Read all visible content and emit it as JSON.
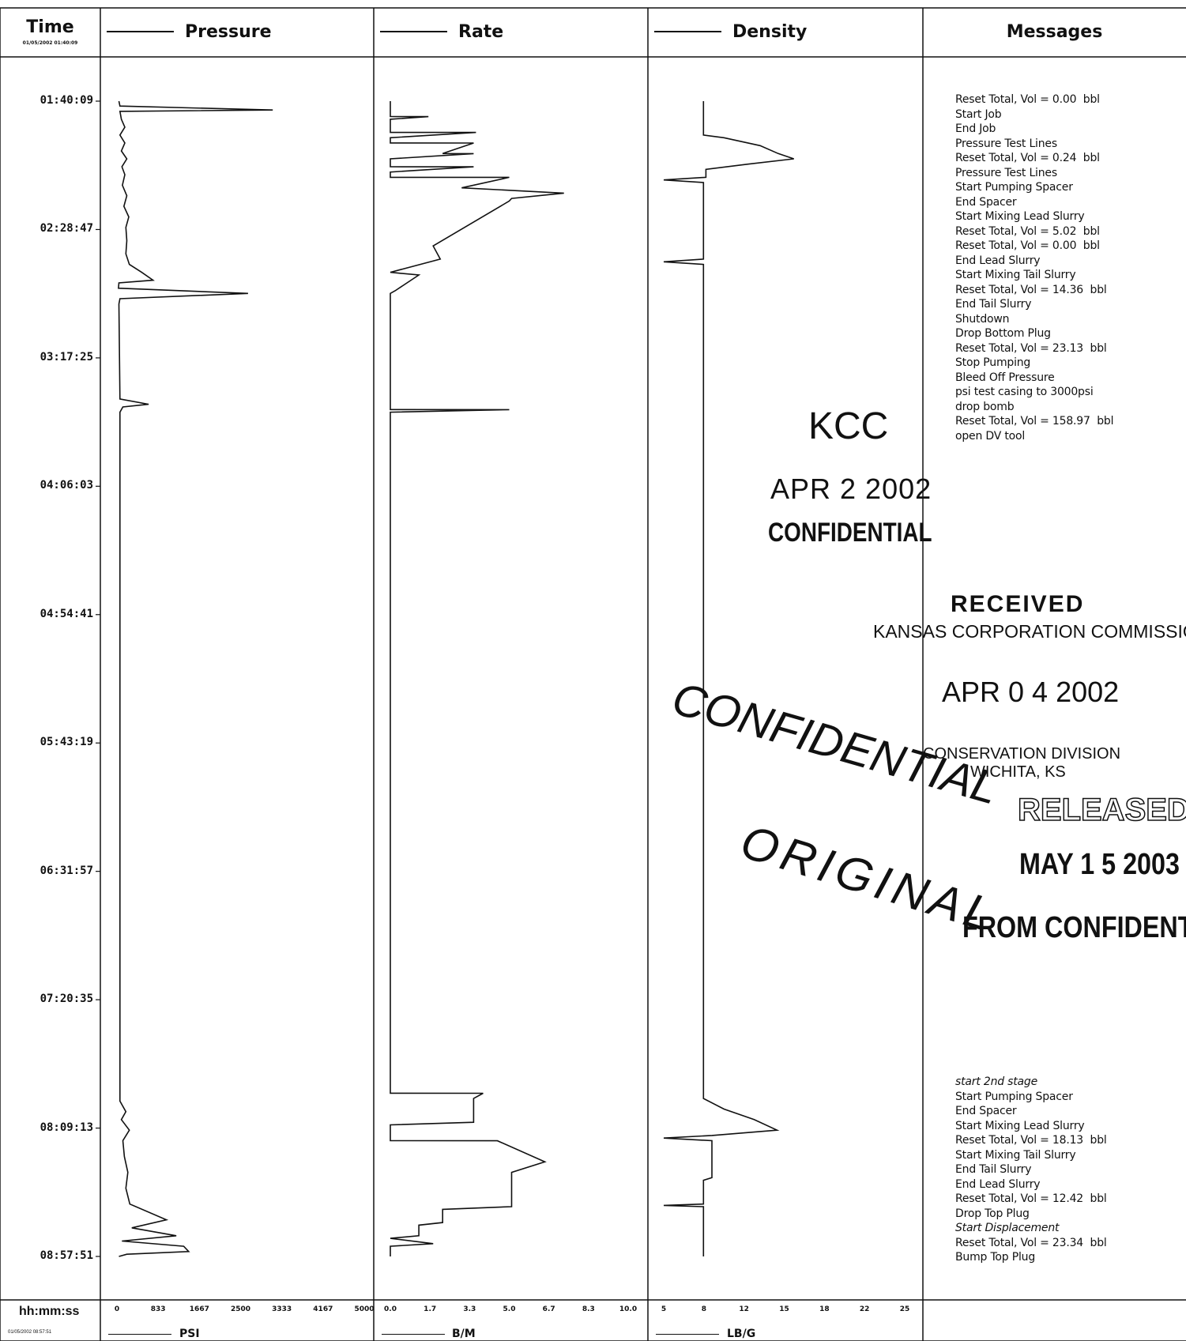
{
  "headers": {
    "time": "Time",
    "time_date": "01/05/2002 01:40:09",
    "pressure": "Pressure",
    "rate": "Rate",
    "density": "Density",
    "messages": "Messages"
  },
  "time_ticks": [
    "01:40:09",
    "02:28:47",
    "03:17:25",
    "04:06:03",
    "04:54:41",
    "05:43:19",
    "06:31:57",
    "07:20:35",
    "08:09:13",
    "08:57:51"
  ],
  "footer": {
    "time_label": "hh:mm:ss",
    "time_date": "01/05/2002 08:57:51",
    "pressure_unit": "PSI",
    "rate_unit": "B/M",
    "density_unit": "LB/G",
    "pressure_ticks": [
      "0",
      "833",
      "1667",
      "2500",
      "3333",
      "4167",
      "5000"
    ],
    "rate_ticks": [
      "0.0",
      "1.7",
      "3.3",
      "5.0",
      "6.7",
      "8.3",
      "10.0"
    ],
    "density_ticks": [
      "5",
      "8",
      "12",
      "15",
      "18",
      "22",
      "25"
    ]
  },
  "messages_group1": [
    "Reset Total, Vol = 0.00  bbl",
    "Start Job",
    "End Job",
    "Pressure Test Lines",
    "Reset Total, Vol = 0.24  bbl",
    "Pressure Test Lines",
    "Start Pumping Spacer",
    "End Spacer",
    "Start Mixing Lead Slurry",
    "Reset Total, Vol = 5.02  bbl",
    "Reset Total, Vol = 0.00  bbl",
    "End Lead Slurry",
    "Start Mixing Tail Slurry",
    "Reset Total, Vol = 14.36  bbl",
    "End Tail Slurry",
    "Shutdown",
    "Drop Bottom Plug",
    "Reset Total, Vol = 23.13  bbl",
    "Stop Pumping",
    "Bleed Off Pressure",
    "psi test casing to 3000psi",
    "drop bomb",
    "Reset Total, Vol = 158.97  bbl",
    "open DV tool"
  ],
  "messages_group2": [
    "start 2nd stage",
    "Start Pumping Spacer",
    "End Spacer",
    "Start Mixing Lead Slurry",
    "Reset Total, Vol = 18.13  bbl",
    "Start Mixing Tail Slurry",
    "End Tail Slurry",
    "End Lead Slurry",
    "Reset Total, Vol = 12.42  bbl",
    "Drop Top Plug",
    "Start Displacement",
    "Reset Total, Vol = 23.34  bbl",
    "Bump Top Plug"
  ],
  "stamps": {
    "kcc": "KCC",
    "kcc_date": "APR    2 2002",
    "kcc_confidential": "CONFIDENTIAL",
    "received": "RECEIVED",
    "kansas": "KANSAS CORPORATION COMMISSION",
    "received_date": "APR 0 4 2002",
    "conservation": "CONSERVATION DIVISION",
    "wichita": "WICHITA, KS",
    "confidential_big": "CONFIDENTIAL",
    "original": "ORIGINAL",
    "released": "RELEASED",
    "released_date": "MAY 1 5 2003",
    "from_confidential": "FROM CONFIDENTIAL"
  },
  "chart_data": {
    "type": "line",
    "x_axis": "time",
    "time_range": [
      "01:40:09",
      "08:57:51"
    ],
    "series": [
      {
        "name": "Pressure",
        "unit": "PSI",
        "xlim": [
          0,
          5000
        ],
        "points": [
          [
            "01:40:09",
            40
          ],
          [
            "01:42:00",
            60
          ],
          [
            "01:43:30",
            3150
          ],
          [
            "01:44:00",
            60
          ],
          [
            "01:47:00",
            90
          ],
          [
            "01:50:00",
            160
          ],
          [
            "01:53:00",
            60
          ],
          [
            "01:56:00",
            160
          ],
          [
            "01:59:00",
            90
          ],
          [
            "02:02:00",
            200
          ],
          [
            "02:05:00",
            100
          ],
          [
            "02:08:00",
            160
          ],
          [
            "02:12:00",
            110
          ],
          [
            "02:16:00",
            200
          ],
          [
            "02:20:00",
            140
          ],
          [
            "02:24:00",
            240
          ],
          [
            "02:28:00",
            180
          ],
          [
            "02:33:00",
            200
          ],
          [
            "02:38:00",
            180
          ],
          [
            "02:42:00",
            250
          ],
          [
            "02:45:00",
            500
          ],
          [
            "02:48:00",
            730
          ],
          [
            "02:49:00",
            40
          ],
          [
            "02:51:00",
            30
          ],
          [
            "02:53:00",
            2650
          ],
          [
            "02:55:00",
            60
          ],
          [
            "02:57:00",
            40
          ],
          [
            "03:33:00",
            60
          ],
          [
            "03:35:00",
            640
          ],
          [
            "03:36:00",
            120
          ],
          [
            "03:38:00",
            60
          ],
          [
            "03:38:30",
            60
          ],
          [
            "07:59:00",
            60
          ],
          [
            "08:03:00",
            180
          ],
          [
            "08:06:00",
            90
          ],
          [
            "08:10:00",
            250
          ],
          [
            "08:14:00",
            120
          ],
          [
            "08:20:00",
            150
          ],
          [
            "08:26:00",
            220
          ],
          [
            "08:32:00",
            180
          ],
          [
            "08:38:00",
            260
          ],
          [
            "08:44:00",
            1000
          ],
          [
            "08:47:00",
            300
          ],
          [
            "08:50:00",
            1200
          ],
          [
            "08:52:00",
            100
          ],
          [
            "08:54:00",
            1350
          ],
          [
            "08:56:00",
            1450
          ],
          [
            "08:57:00",
            200
          ],
          [
            "08:57:51",
            40
          ]
        ]
      },
      {
        "name": "Rate",
        "unit": "B/M",
        "xlim": [
          0,
          10
        ],
        "points": [
          [
            "01:40:09",
            0
          ],
          [
            "01:46:00",
            0
          ],
          [
            "01:46:01",
            1.6
          ],
          [
            "01:47:00",
            0
          ],
          [
            "01:52:00",
            0
          ],
          [
            "01:52:01",
            3.6
          ],
          [
            "01:54:00",
            0
          ],
          [
            "01:56:00",
            0
          ],
          [
            "01:56:01",
            3.5
          ],
          [
            "02:00:00",
            2.2
          ],
          [
            "02:00:01",
            3.5
          ],
          [
            "02:02:00",
            0
          ],
          [
            "02:05:00",
            0
          ],
          [
            "02:05:01",
            3.5
          ],
          [
            "02:07:00",
            0
          ],
          [
            "02:09:00",
            0
          ],
          [
            "02:09:01",
            5.0
          ],
          [
            "02:13:00",
            3.0
          ],
          [
            "02:15:00",
            7.3
          ],
          [
            "02:17:00",
            5.1
          ],
          [
            "02:18:00",
            5.0
          ],
          [
            "02:35:00",
            1.8
          ],
          [
            "02:40:00",
            2.1
          ],
          [
            "02:45:00",
            0
          ],
          [
            "02:46:00",
            1.2
          ],
          [
            "02:52:00",
            0.2
          ],
          [
            "02:53:00",
            0
          ],
          [
            "03:37:00",
            0
          ],
          [
            "03:37:01",
            5.0
          ],
          [
            "03:38:00",
            0
          ],
          [
            "07:56:00",
            0
          ],
          [
            "07:56:01",
            3.9
          ],
          [
            "07:58:00",
            3.5
          ],
          [
            "08:07:00",
            3.5
          ],
          [
            "08:08:00",
            0
          ],
          [
            "08:14:00",
            0
          ],
          [
            "08:14:01",
            4.5
          ],
          [
            "08:22:00",
            6.5
          ],
          [
            "08:26:00",
            5.1
          ],
          [
            "08:39:00",
            5.1
          ],
          [
            "08:40:00",
            2.2
          ],
          [
            "08:45:00",
            2.2
          ],
          [
            "08:46:00",
            1.2
          ],
          [
            "08:50:00",
            1.2
          ],
          [
            "08:51:00",
            0
          ],
          [
            "08:53:00",
            1.8
          ],
          [
            "08:54:00",
            0
          ],
          [
            "08:57:51",
            0
          ]
        ]
      },
      {
        "name": "Density",
        "unit": "LB/G",
        "xlim": [
          5,
          25
        ],
        "points": [
          [
            "01:40:09",
            8.3
          ],
          [
            "01:53:00",
            8.3
          ],
          [
            "01:54:00",
            10
          ],
          [
            "01:57:00",
            13
          ],
          [
            "02:00:00",
            14.5
          ],
          [
            "02:02:00",
            15.8
          ],
          [
            "02:04:00",
            12
          ],
          [
            "02:06:00",
            8.5
          ],
          [
            "02:09:00",
            8.5
          ],
          [
            "02:10:00",
            5
          ],
          [
            "02:11:00",
            8.3
          ],
          [
            "02:30:00",
            8.3
          ],
          [
            "02:40:00",
            8.3
          ],
          [
            "02:41:00",
            5
          ],
          [
            "02:42:00",
            8.3
          ],
          [
            "07:58:00",
            8.3
          ],
          [
            "08:02:00",
            10
          ],
          [
            "08:06:00",
            12.5
          ],
          [
            "08:10:00",
            14.4
          ],
          [
            "08:12:00",
            9
          ],
          [
            "08:13:00",
            5
          ],
          [
            "08:14:00",
            9
          ],
          [
            "08:28:00",
            9
          ],
          [
            "08:29:00",
            8.3
          ],
          [
            "08:38:00",
            8.3
          ],
          [
            "08:38:30",
            5
          ],
          [
            "08:39:00",
            8.3
          ],
          [
            "08:57:51",
            8.3
          ]
        ]
      }
    ]
  }
}
